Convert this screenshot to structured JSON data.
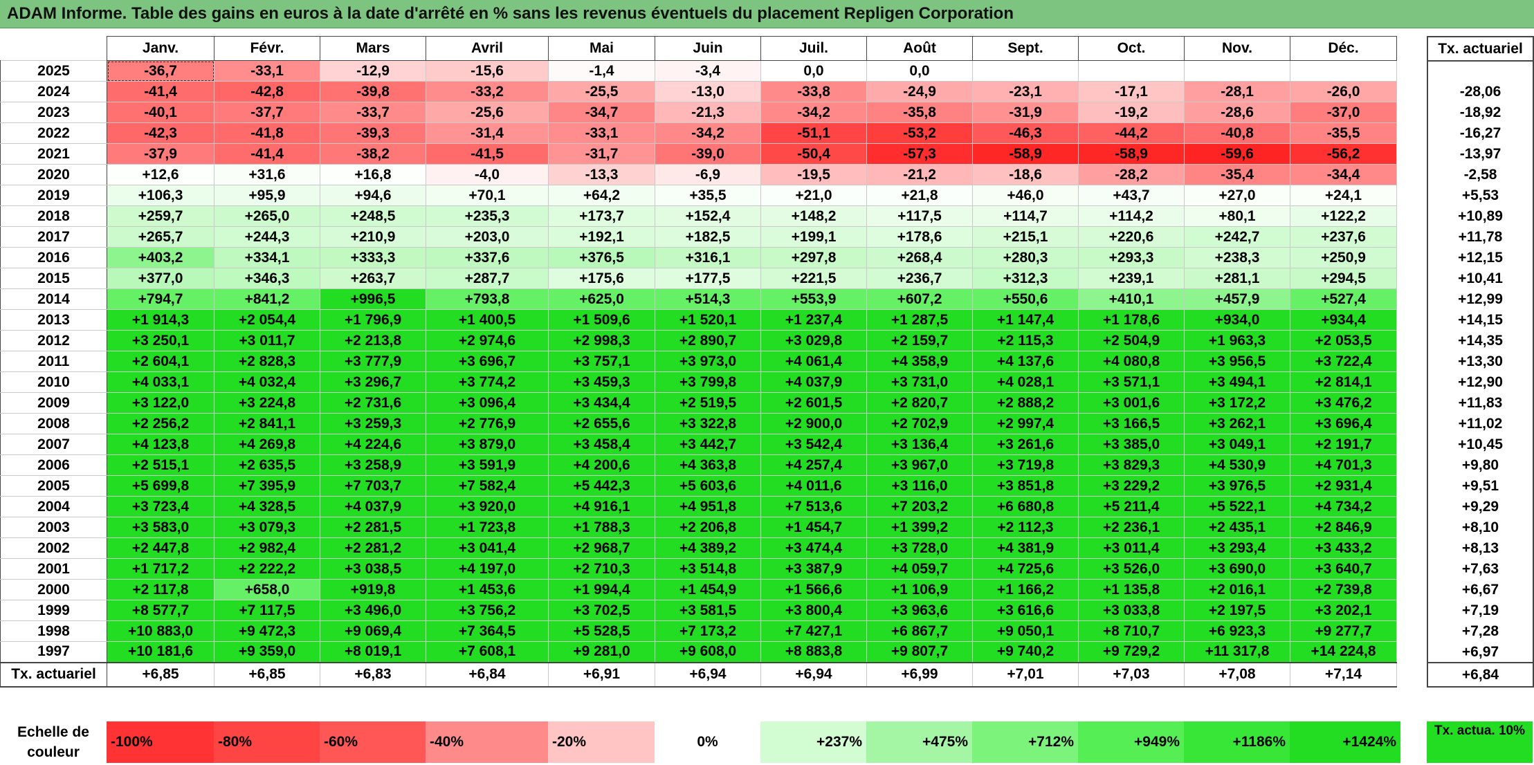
{
  "title": "ADAM Informe. Table des gains en euros à la date d'arrêté en % sans les revenus éventuels du placement Repligen Corporation",
  "months": [
    "Janv.",
    "Févr.",
    "Mars",
    "Avril",
    "Mai",
    "Juin",
    "Juil.",
    "Août",
    "Sept.",
    "Oct.",
    "Nov.",
    "Déc."
  ],
  "actuarial_header": "Tx. actuariel",
  "footer_label": "Tx. actuariel",
  "rows": [
    {
      "year": "2025",
      "cells": [
        "-36,7",
        "-33,1",
        "-12,9",
        "-15,6",
        "-1,4",
        "-3,4",
        "0,0",
        "0,0",
        "",
        "",
        "",
        ""
      ],
      "rate": ""
    },
    {
      "year": "2024",
      "cells": [
        "-41,4",
        "-42,8",
        "-39,8",
        "-33,2",
        "-25,5",
        "-13,0",
        "-33,8",
        "-24,9",
        "-23,1",
        "-17,1",
        "-28,1",
        "-26,0"
      ],
      "rate": "-28,06"
    },
    {
      "year": "2023",
      "cells": [
        "-40,1",
        "-37,7",
        "-33,7",
        "-25,6",
        "-34,7",
        "-21,3",
        "-34,2",
        "-35,8",
        "-31,9",
        "-19,2",
        "-28,6",
        "-37,0"
      ],
      "rate": "-18,92"
    },
    {
      "year": "2022",
      "cells": [
        "-42,3",
        "-41,8",
        "-39,3",
        "-31,4",
        "-33,1",
        "-34,2",
        "-51,1",
        "-53,2",
        "-46,3",
        "-44,2",
        "-40,8",
        "-35,5"
      ],
      "rate": "-16,27"
    },
    {
      "year": "2021",
      "cells": [
        "-37,9",
        "-41,4",
        "-38,2",
        "-41,5",
        "-31,7",
        "-39,0",
        "-50,4",
        "-57,3",
        "-58,9",
        "-58,9",
        "-59,6",
        "-56,2"
      ],
      "rate": "-13,97"
    },
    {
      "year": "2020",
      "cells": [
        "+12,6",
        "+31,6",
        "+16,8",
        "-4,0",
        "-13,3",
        "-6,9",
        "-19,5",
        "-21,2",
        "-18,6",
        "-28,2",
        "-35,4",
        "-34,4"
      ],
      "rate": "-2,58"
    },
    {
      "year": "2019",
      "cells": [
        "+106,3",
        "+95,9",
        "+94,6",
        "+70,1",
        "+64,2",
        "+35,5",
        "+21,0",
        "+21,8",
        "+46,0",
        "+43,7",
        "+27,0",
        "+24,1"
      ],
      "rate": "+5,53"
    },
    {
      "year": "2018",
      "cells": [
        "+259,7",
        "+265,0",
        "+248,5",
        "+235,3",
        "+173,7",
        "+152,4",
        "+148,2",
        "+117,5",
        "+114,7",
        "+114,2",
        "+80,1",
        "+122,2"
      ],
      "rate": "+10,89"
    },
    {
      "year": "2017",
      "cells": [
        "+265,7",
        "+244,3",
        "+210,9",
        "+203,0",
        "+192,1",
        "+182,5",
        "+199,1",
        "+178,6",
        "+215,1",
        "+220,6",
        "+242,7",
        "+237,6"
      ],
      "rate": "+11,78"
    },
    {
      "year": "2016",
      "cells": [
        "+403,2",
        "+334,1",
        "+333,3",
        "+337,6",
        "+376,5",
        "+316,1",
        "+297,8",
        "+268,4",
        "+280,3",
        "+293,3",
        "+238,3",
        "+250,9"
      ],
      "rate": "+12,15"
    },
    {
      "year": "2015",
      "cells": [
        "+377,0",
        "+346,3",
        "+263,7",
        "+287,7",
        "+175,6",
        "+177,5",
        "+221,5",
        "+236,7",
        "+312,3",
        "+239,1",
        "+281,1",
        "+294,5"
      ],
      "rate": "+10,41"
    },
    {
      "year": "2014",
      "cells": [
        "+794,7",
        "+841,2",
        "+996,5",
        "+793,8",
        "+625,0",
        "+514,3",
        "+553,9",
        "+607,2",
        "+550,6",
        "+410,1",
        "+457,9",
        "+527,4"
      ],
      "rate": "+12,99"
    },
    {
      "year": "2013",
      "cells": [
        "+1 914,3",
        "+2 054,4",
        "+1 796,9",
        "+1 400,5",
        "+1 509,6",
        "+1 520,1",
        "+1 237,4",
        "+1 287,5",
        "+1 147,4",
        "+1 178,6",
        "+934,0",
        "+934,4"
      ],
      "rate": "+14,15"
    },
    {
      "year": "2012",
      "cells": [
        "+3 250,1",
        "+3 011,7",
        "+2 213,8",
        "+2 974,6",
        "+2 998,3",
        "+2 890,7",
        "+3 029,8",
        "+2 159,7",
        "+2 115,3",
        "+2 504,9",
        "+1 963,3",
        "+2 053,5"
      ],
      "rate": "+14,35"
    },
    {
      "year": "2011",
      "cells": [
        "+2 604,1",
        "+2 828,3",
        "+3 777,9",
        "+3 696,7",
        "+3 757,1",
        "+3 973,0",
        "+4 061,4",
        "+4 358,9",
        "+4 137,6",
        "+4 080,8",
        "+3 956,5",
        "+3 722,4"
      ],
      "rate": "+13,30"
    },
    {
      "year": "2010",
      "cells": [
        "+4 033,1",
        "+4 032,4",
        "+3 296,7",
        "+3 774,2",
        "+3 459,3",
        "+3 799,8",
        "+4 037,9",
        "+3 731,0",
        "+4 028,1",
        "+3 571,1",
        "+3 494,1",
        "+2 814,1"
      ],
      "rate": "+12,90"
    },
    {
      "year": "2009",
      "cells": [
        "+3 122,0",
        "+3 224,8",
        "+2 731,6",
        "+3 096,4",
        "+3 434,4",
        "+2 519,5",
        "+2 601,5",
        "+2 820,7",
        "+2 888,2",
        "+3 001,6",
        "+3 172,2",
        "+3 476,2"
      ],
      "rate": "+11,83"
    },
    {
      "year": "2008",
      "cells": [
        "+2 256,2",
        "+2 841,1",
        "+3 259,3",
        "+2 776,9",
        "+2 655,6",
        "+3 322,8",
        "+2 900,0",
        "+2 702,9",
        "+2 997,4",
        "+3 166,5",
        "+3 262,1",
        "+3 696,4"
      ],
      "rate": "+11,02"
    },
    {
      "year": "2007",
      "cells": [
        "+4 123,8",
        "+4 269,8",
        "+4 224,6",
        "+3 879,0",
        "+3 458,4",
        "+3 442,7",
        "+3 542,4",
        "+3 136,4",
        "+3 261,6",
        "+3 385,0",
        "+3 049,1",
        "+2 191,7"
      ],
      "rate": "+10,45"
    },
    {
      "year": "2006",
      "cells": [
        "+2 515,1",
        "+2 635,5",
        "+3 258,9",
        "+3 591,9",
        "+4 200,6",
        "+4 363,8",
        "+4 257,4",
        "+3 967,0",
        "+3 719,8",
        "+3 829,3",
        "+4 530,9",
        "+4 701,3"
      ],
      "rate": "+9,80"
    },
    {
      "year": "2005",
      "cells": [
        "+5 699,8",
        "+7 395,9",
        "+7 703,7",
        "+7 582,4",
        "+5 442,3",
        "+5 603,6",
        "+4 011,6",
        "+3 116,0",
        "+3 851,8",
        "+3 229,2",
        "+3 976,5",
        "+2 931,4"
      ],
      "rate": "+9,51"
    },
    {
      "year": "2004",
      "cells": [
        "+3 723,4",
        "+4 328,5",
        "+4 037,9",
        "+3 920,0",
        "+4 916,1",
        "+4 951,8",
        "+7 513,6",
        "+7 203,2",
        "+6 680,8",
        "+5 211,4",
        "+5 522,1",
        "+4 734,2"
      ],
      "rate": "+9,29"
    },
    {
      "year": "2003",
      "cells": [
        "+3 583,0",
        "+3 079,3",
        "+2 281,5",
        "+1 723,8",
        "+1 788,3",
        "+2 206,8",
        "+1 454,7",
        "+1 399,2",
        "+2 112,3",
        "+2 236,1",
        "+2 435,1",
        "+2 846,9"
      ],
      "rate": "+8,10"
    },
    {
      "year": "2002",
      "cells": [
        "+2 447,8",
        "+2 982,4",
        "+2 281,2",
        "+3 041,4",
        "+2 968,7",
        "+4 389,2",
        "+3 474,4",
        "+3 728,0",
        "+4 381,9",
        "+3 011,4",
        "+3 293,4",
        "+3 433,2"
      ],
      "rate": "+8,13"
    },
    {
      "year": "2001",
      "cells": [
        "+1 717,2",
        "+2 222,2",
        "+3 038,5",
        "+4 197,0",
        "+2 710,3",
        "+3 514,8",
        "+3 387,9",
        "+4 059,7",
        "+4 725,6",
        "+3 526,0",
        "+3 690,0",
        "+3 640,7"
      ],
      "rate": "+7,63"
    },
    {
      "year": "2000",
      "cells": [
        "+2 117,8",
        "+658,0",
        "+919,8",
        "+1 453,6",
        "+1 994,4",
        "+1 454,9",
        "+1 566,6",
        "+1 106,9",
        "+1 166,2",
        "+1 135,8",
        "+2 016,1",
        "+2 739,8"
      ],
      "rate": "+6,67"
    },
    {
      "year": "1999",
      "cells": [
        "+8 577,7",
        "+7 117,5",
        "+3 496,0",
        "+3 756,2",
        "+3 702,5",
        "+3 581,5",
        "+3 800,4",
        "+3 963,6",
        "+3 616,6",
        "+3 033,8",
        "+2 197,5",
        "+3 202,1"
      ],
      "rate": "+7,19"
    },
    {
      "year": "1998",
      "cells": [
        "+10 883,0",
        "+9 472,3",
        "+9 069,4",
        "+7 364,5",
        "+5 528,5",
        "+7 173,2",
        "+7 427,1",
        "+6 867,7",
        "+9 050,1",
        "+8 710,7",
        "+6 923,3",
        "+9 277,7"
      ],
      "rate": "+7,28"
    },
    {
      "year": "1997",
      "cells": [
        "+10 181,6",
        "+9 359,0",
        "+8 019,1",
        "+7 608,1",
        "+9 281,0",
        "+9 608,0",
        "+8 883,8",
        "+9 807,7",
        "+9 740,2",
        "+9 729,2",
        "+11 317,8",
        "+14 224,8"
      ],
      "rate": "+6,97"
    }
  ],
  "footer": {
    "cells": [
      "+6,85",
      "+6,85",
      "+6,83",
      "+6,84",
      "+6,91",
      "+6,94",
      "+6,94",
      "+6,99",
      "+7,01",
      "+7,03",
      "+7,08",
      "+7,14"
    ],
    "rate": "+6,84"
  },
  "legend": {
    "label": "Echelle de couleur",
    "steps": [
      {
        "label": "-100%",
        "color": "#ff3333"
      },
      {
        "label": "-80%",
        "color": "#ff4444"
      },
      {
        "label": "-60%",
        "color": "#ff5656"
      },
      {
        "label": "-40%",
        "color": "#ff8a8a"
      },
      {
        "label": "-20%",
        "color": "#ffc4c4"
      },
      {
        "label": "0%",
        "color": "#ffffff"
      },
      {
        "label": "+237%",
        "color": "#d2fcd2"
      },
      {
        "label": "+475%",
        "color": "#a4f5a4"
      },
      {
        "label": "+712%",
        "color": "#7cf47c"
      },
      {
        "label": "+949%",
        "color": "#55ee55"
      },
      {
        "label": "+1186%",
        "color": "#38e638"
      },
      {
        "label": "+1424%",
        "color": "#22dd22"
      }
    ],
    "actuarial": "Tx. actua. 10%"
  }
}
